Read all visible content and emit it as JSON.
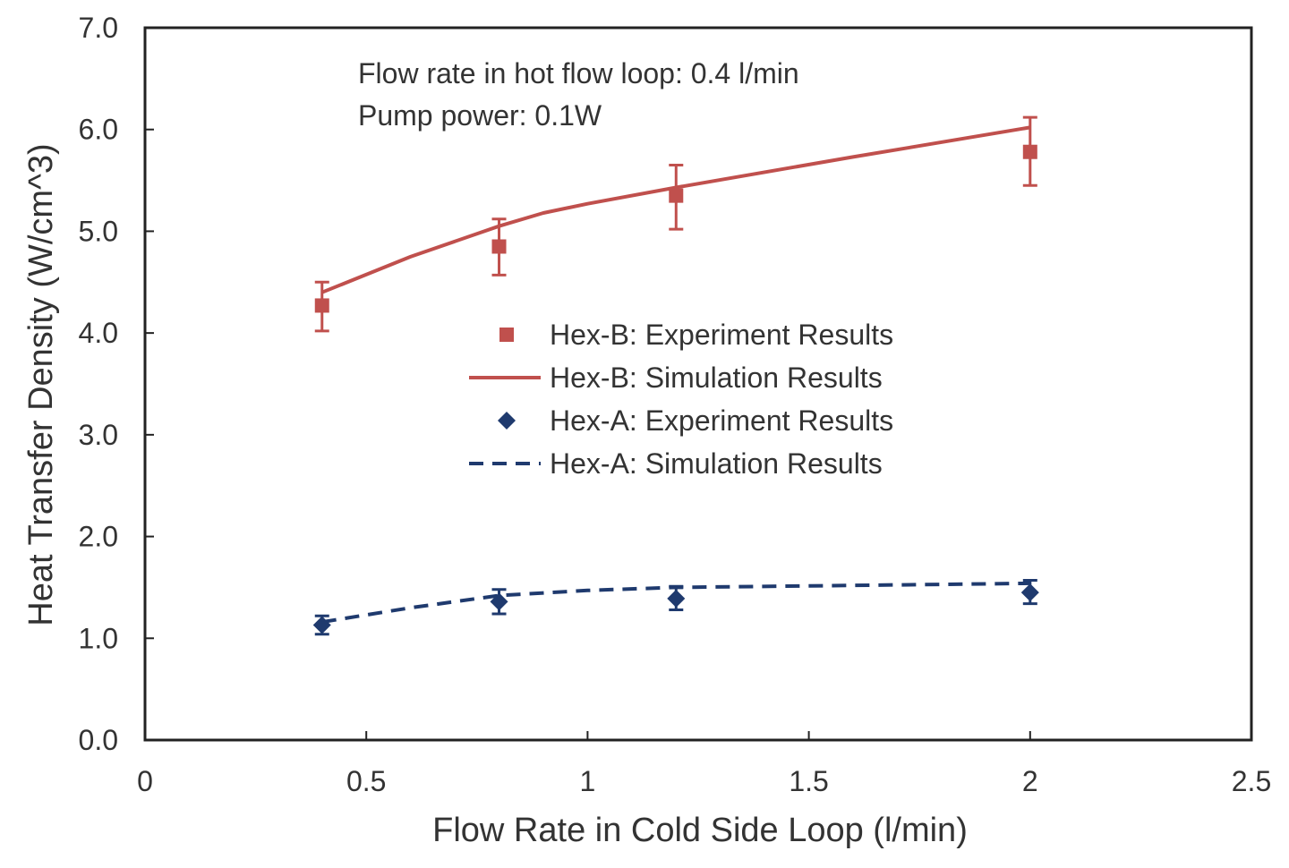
{
  "chart_data": {
    "type": "line",
    "title": "",
    "xlabel": "Flow Rate in Cold Side Loop (l/min)",
    "ylabel": "Heat Transfer Density (W/cm^3)",
    "xlim": [
      0,
      2.5
    ],
    "ylim": [
      0,
      7
    ],
    "x_ticks": [
      0,
      0.5,
      1,
      1.5,
      2,
      2.5
    ],
    "x_tick_labels": [
      "0",
      "0.5",
      "1",
      "1.5",
      "2",
      "2.5"
    ],
    "y_ticks": [
      0,
      1,
      2,
      3,
      4,
      5,
      6,
      7
    ],
    "y_tick_labels": [
      "0.0",
      "1.0",
      "2.0",
      "3.0",
      "4.0",
      "5.0",
      "6.0",
      "7.0"
    ],
    "grid": false,
    "legend_position": "center",
    "annotations": [
      "Flow rate in hot flow loop: 0.4 l/min",
      "Pump power: 0.1W"
    ],
    "series": [
      {
        "name": "Hex-B: Experiment Results",
        "kind": "scatter",
        "marker": "square",
        "color": "#c0504d",
        "x": [
          0.4,
          0.8,
          1.2,
          2.0
        ],
        "y": [
          4.27,
          4.85,
          5.35,
          5.78
        ],
        "err_low": [
          4.02,
          4.57,
          5.02,
          5.45
        ],
        "err_high": [
          4.5,
          5.12,
          5.65,
          6.12
        ]
      },
      {
        "name": "Hex-B: Simulation Results",
        "kind": "line",
        "dash": "solid",
        "color": "#c0504d",
        "x": [
          0.4,
          0.6,
          0.8,
          0.9,
          1.0,
          1.2,
          1.6,
          2.0
        ],
        "y": [
          4.4,
          4.75,
          5.05,
          5.18,
          5.27,
          5.43,
          5.73,
          6.02
        ]
      },
      {
        "name": "Hex-A: Experiment Results",
        "kind": "scatter",
        "marker": "diamond",
        "color": "#1f3a6e",
        "x": [
          0.4,
          0.8,
          1.2,
          2.0
        ],
        "y": [
          1.13,
          1.36,
          1.39,
          1.45
        ],
        "err_low": [
          1.04,
          1.24,
          1.28,
          1.34
        ],
        "err_high": [
          1.22,
          1.48,
          1.51,
          1.57
        ]
      },
      {
        "name": "Hex-A: Simulation Results",
        "kind": "line",
        "dash": "dashed",
        "color": "#1f3a6e",
        "x": [
          0.4,
          0.6,
          0.8,
          1.0,
          1.2,
          1.6,
          2.0
        ],
        "y": [
          1.16,
          1.3,
          1.42,
          1.47,
          1.5,
          1.52,
          1.54
        ]
      }
    ]
  }
}
